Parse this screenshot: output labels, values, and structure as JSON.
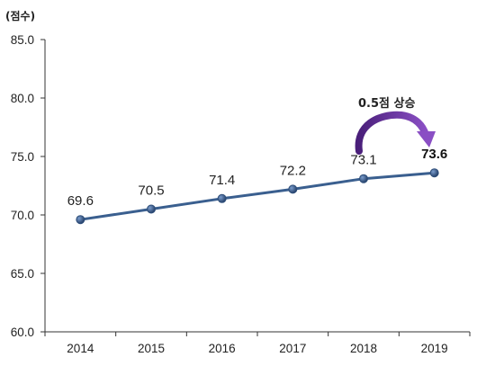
{
  "chart_data": {
    "type": "line",
    "ylabel": "(점수)",
    "xlabel": "",
    "title": "",
    "categories": [
      "2014",
      "2015",
      "2016",
      "2017",
      "2018",
      "2019"
    ],
    "values": [
      69.6,
      70.5,
      71.4,
      72.2,
      73.1,
      73.6
    ],
    "data_labels": [
      "69.6",
      "70.5",
      "71.4",
      "72.2",
      "73.1",
      "73.6"
    ],
    "ylim": [
      60.0,
      85.0
    ],
    "yticks": [
      "60.0",
      "65.0",
      "70.0",
      "75.0",
      "80.0",
      "85.0"
    ],
    "grid": false,
    "annotation": {
      "text": "0.5점 상승",
      "from": "2018",
      "to": "2019"
    },
    "colors": {
      "line": "#3a5f8f",
      "marker": "#2f4f7a",
      "arrow": "#6b2fa0",
      "axis": "#333333"
    }
  }
}
